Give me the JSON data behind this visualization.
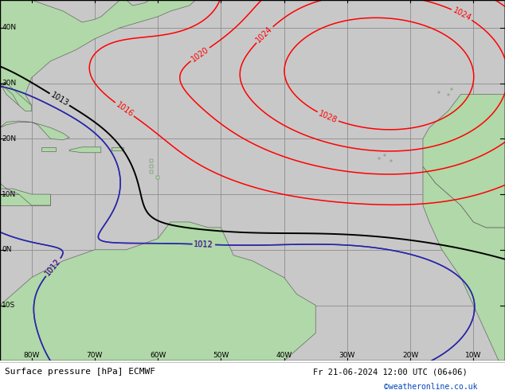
{
  "title": "Surface pressure [hPa] ECMWF",
  "datetime_str": "Fr 21-06-2024 12:00 UTC (06+06)",
  "credit": "©weatheronline.co.uk",
  "ocean_color": "#c8c8c8",
  "land_color": "#b0d8a8",
  "grid_color": "#888888",
  "bottom_bar_color": "#ffffff",
  "bottom_text_color": "#000000",
  "credit_color": "#0044bb",
  "lon_min": -85,
  "lon_max": -5,
  "lat_min": -20,
  "lat_max": 45,
  "lon_ticks": [
    -80,
    -70,
    -60,
    -50,
    -40,
    -30,
    -20,
    -10
  ],
  "lat_ticks": [
    40,
    30,
    20,
    10,
    0,
    -10
  ],
  "figsize": [
    6.34,
    4.9
  ],
  "dpi": 100
}
